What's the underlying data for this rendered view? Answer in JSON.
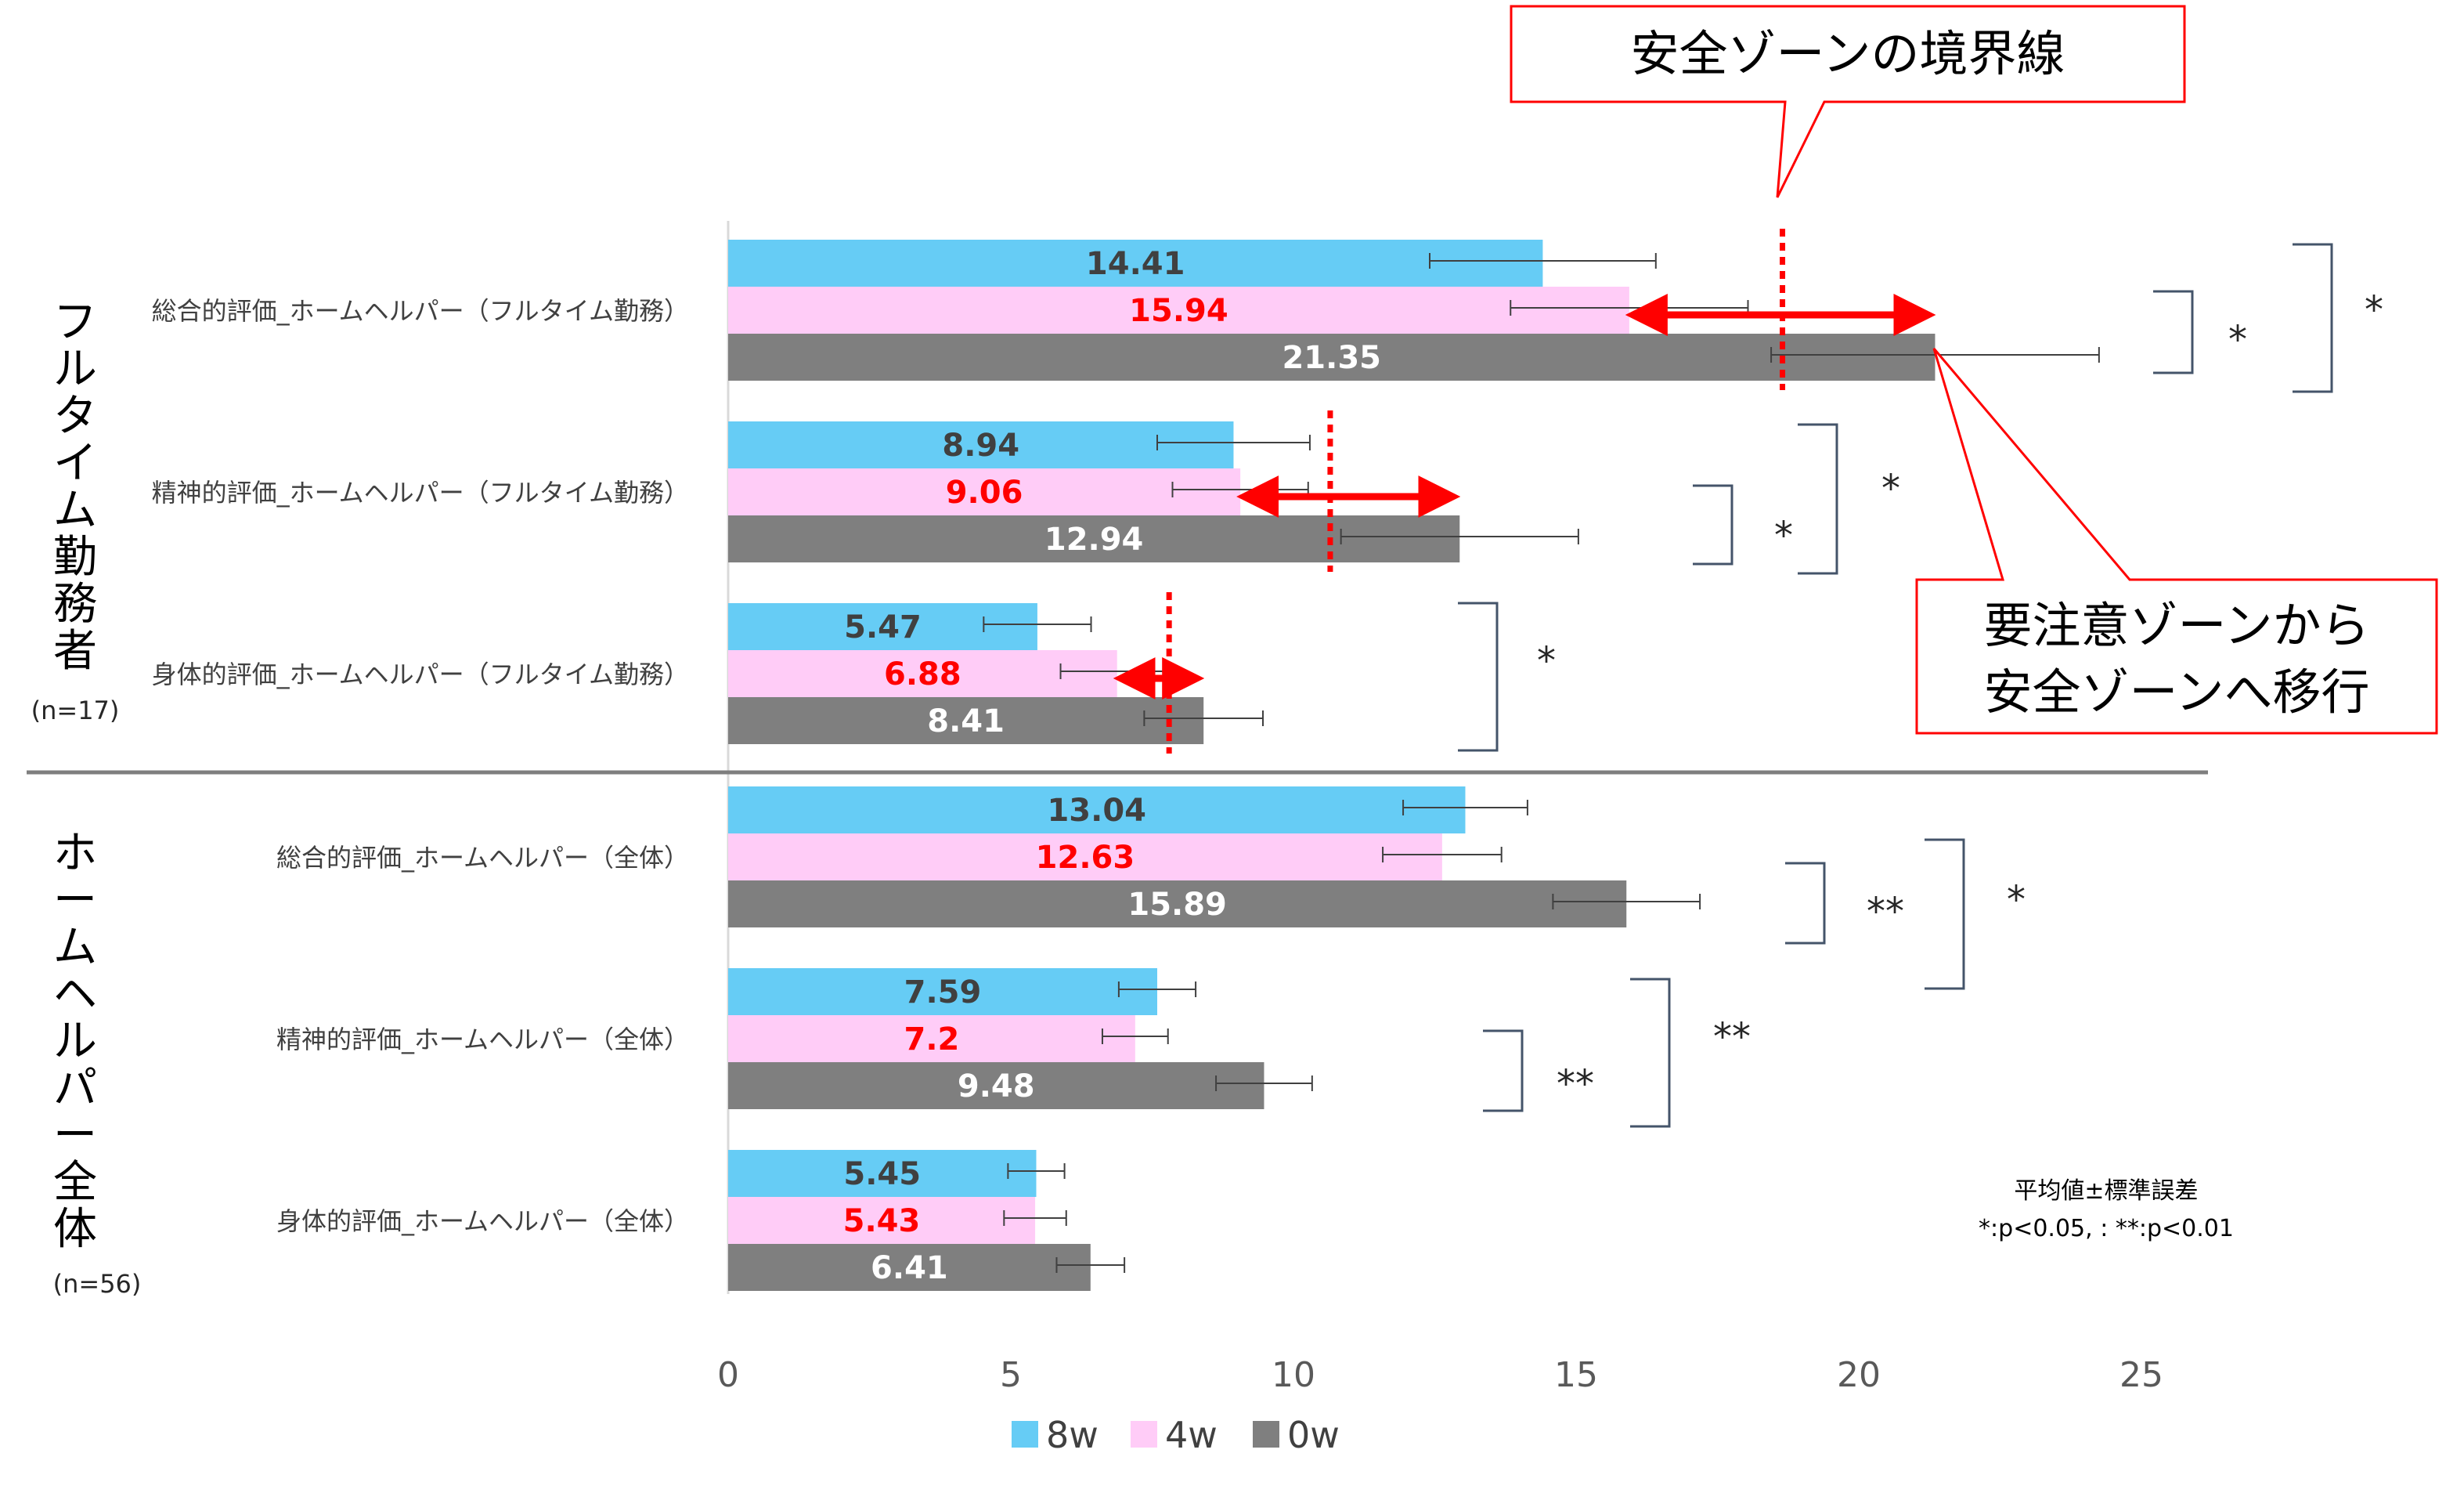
{
  "chart_data": {
    "type": "bar",
    "orientation": "horizontal",
    "xlim": [
      0,
      25
    ],
    "xticks": [
      "0",
      "5",
      "10",
      "15",
      "20",
      "25"
    ],
    "legend_position": "bottom",
    "series_colors": {
      "8w": "#66ccf5",
      "4w": "#ffccf7",
      "0w": "#7f7f7f"
    },
    "value_label_colors": {
      "8w": "#404040",
      "4w": "#ff0000",
      "0w": "#ffffff"
    },
    "legend": [
      "8w",
      "4w",
      "0w"
    ],
    "groups": [
      {
        "label": "フルタイム勤務者",
        "n": "(n=17)",
        "categories": [
          {
            "label": "総合的評価_ホームヘルパー（フルタイム勤務）",
            "values": {
              "8w": 14.41,
              "4w": 15.94,
              "0w": 21.35
            },
            "labels": {
              "8w": "14.41",
              "4w": "15.94",
              "0w": "21.35"
            },
            "errors": {
              "8w": 2.0,
              "4w": 2.1,
              "0w": 2.9
            },
            "boundary": 18.65,
            "sig_inner": "*",
            "sig_outer": "*"
          },
          {
            "label": "精神的評価_ホームヘルパー（フルタイム勤務）",
            "values": {
              "8w": 8.94,
              "4w": 9.06,
              "0w": 12.94
            },
            "labels": {
              "8w": "8.94",
              "4w": "9.06",
              "0w": "12.94"
            },
            "errors": {
              "8w": 1.35,
              "4w": 1.2,
              "0w": 2.1
            },
            "boundary": 10.65,
            "sig_inner": "*",
            "sig_outer": "*"
          },
          {
            "label": "身体的評価_ホームヘルパー（フルタイム勤務）",
            "values": {
              "8w": 5.47,
              "4w": 6.88,
              "0w": 8.41
            },
            "labels": {
              "8w": "5.47",
              "4w": "6.88",
              "0w": "8.41"
            },
            "errors": {
              "8w": 0.95,
              "4w": 1.0,
              "0w": 1.05
            },
            "boundary": 7.8,
            "sig_inner": "",
            "sig_outer": "*"
          }
        ]
      },
      {
        "label": "ホームヘルパー全体",
        "n": "(n=56)",
        "categories": [
          {
            "label": "総合的評価_ホームヘルパー（全体）",
            "values": {
              "8w": 13.04,
              "4w": 12.63,
              "0w": 15.89
            },
            "labels": {
              "8w": "13.04",
              "4w": "12.63",
              "0w": "15.89"
            },
            "errors": {
              "8w": 1.1,
              "4w": 1.05,
              "0w": 1.3
            },
            "sig_inner": "**",
            "sig_outer": "*"
          },
          {
            "label": "精神的評価_ホームヘルパー（全体）",
            "values": {
              "8w": 7.59,
              "4w": 7.2,
              "0w": 9.48
            },
            "labels": {
              "8w": "7.59",
              "4w": "7.2",
              "0w": "9.48"
            },
            "errors": {
              "8w": 0.68,
              "4w": 0.58,
              "0w": 0.85
            },
            "sig_inner": "**",
            "sig_outer": "**"
          },
          {
            "label": "身体的評価_ホームヘルパー（全体）",
            "values": {
              "8w": 5.45,
              "4w": 5.43,
              "0w": 6.41
            },
            "labels": {
              "8w": "5.45",
              "4w": "5.43",
              "0w": "6.41"
            },
            "errors": {
              "8w": 0.5,
              "4w": 0.55,
              "0w": 0.6
            },
            "sig_inner": "",
            "sig_outer": ""
          }
        ]
      }
    ],
    "annotations": {
      "boundary_callout": "安全ゾーンの境界線",
      "shift_callout_line1": "要注意ゾーンから",
      "shift_callout_line2": "安全ゾーンへ移行",
      "note_line1": "平均値±標準誤差",
      "note_line2": "*:p<0.05,  : **:p<0.01"
    }
  }
}
